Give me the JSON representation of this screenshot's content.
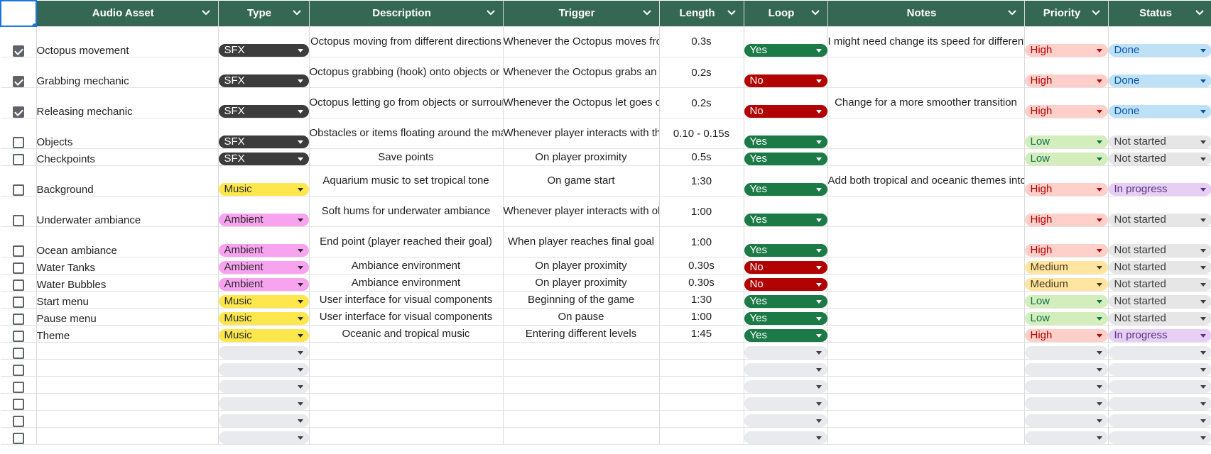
{
  "headers": [
    "Audio Asset",
    "Type",
    "Description",
    "Trigger",
    "Length",
    "Loop",
    "Notes",
    "Priority",
    "Status"
  ],
  "styles": {
    "type": {
      "SFX": {
        "bg": "#3c3c3c",
        "fg": "#ffffff"
      },
      "Music": {
        "bg": "#fde74c",
        "fg": "#2b2b2b"
      },
      "Ambient": {
        "bg": "#f7a3ef",
        "fg": "#2b2b2b"
      },
      "": {
        "bg": "#e8eaed",
        "fg": "#3c4043"
      }
    },
    "loop": {
      "Yes": {
        "bg": "#1b7a46",
        "fg": "#ffffff"
      },
      "No": {
        "bg": "#b10202",
        "fg": "#ffffff"
      },
      "": {
        "bg": "#e8eaed",
        "fg": "#3c4043"
      }
    },
    "priority": {
      "High": {
        "bg": "#ffcfc9",
        "fg": "#b10202"
      },
      "Low": {
        "bg": "#d4edbc",
        "fg": "#11734b"
      },
      "Medium": {
        "bg": "#ffe5a0",
        "fg": "#473821"
      },
      "": {
        "bg": "#e8eaed",
        "fg": "#3c4043"
      }
    },
    "status": {
      "Done": {
        "bg": "#bfe1f6",
        "fg": "#0a53a8"
      },
      "Not started": {
        "bg": "#e6e6e6",
        "fg": "#3d3d3d"
      },
      "In progress": {
        "bg": "#e6cff2",
        "fg": "#5a3286"
      },
      "": {
        "bg": "#e8eaed",
        "fg": "#3c4043"
      }
    }
  },
  "rows": [
    {
      "checked": true,
      "asset": "Octopus movement",
      "type": "SFX",
      "description": "Octopus moving from different directions",
      "trigger": "Whenever the Octopus moves from one point to another",
      "length": "0.3s",
      "loop": "Yes",
      "notes": "I might need change its speed for different velocity variations",
      "priority": "High",
      "status": "Done",
      "tall": true
    },
    {
      "checked": true,
      "asset": "Grabbing mechanic",
      "type": "SFX",
      "description": "Octopus grabbing (hook) onto objects or surroundings",
      "trigger": "Whenever the Octopus grabs an object or wall",
      "length": "0.2s",
      "loop": "No",
      "notes": "",
      "priority": "High",
      "status": "Done",
      "tall": true
    },
    {
      "checked": true,
      "asset": "Releasing mechanic",
      "type": "SFX",
      "description": "Octopus letting go from objects or surroundings",
      "trigger": "Whenever the Octopus let goes of the object or wall",
      "length": "0.2s",
      "loop": "No",
      "notes": "Change for a more smoother transition",
      "priority": "High",
      "status": "Done",
      "tall": true
    },
    {
      "checked": false,
      "asset": "Objects",
      "type": "SFX",
      "description": "Obstacles or items floating around the map",
      "trigger": "Whenever player interacts with them",
      "length": "0.10 - 0.15s",
      "loop": "Yes",
      "notes": "",
      "priority": "Low",
      "status": "Not started",
      "tall": true
    },
    {
      "checked": false,
      "asset": "Checkpoints",
      "type": "SFX",
      "description": "Save points",
      "trigger": "On player proximity",
      "length": "0.5s",
      "loop": "Yes",
      "notes": "",
      "priority": "Low",
      "status": "Not started",
      "tall": false
    },
    {
      "checked": false,
      "asset": "Background",
      "type": "Music",
      "description": "Aquarium music to set tropical tone",
      "trigger": "On game start",
      "length": "1:30",
      "loop": "Yes",
      "notes": "Add both tropical and oceanic themes into one",
      "priority": "High",
      "status": "In progress",
      "tall": true
    },
    {
      "checked": false,
      "asset": "Underwater ambiance",
      "type": "Ambient",
      "description": "Soft hums for underwater ambiance",
      "trigger": "Whenever player interacts with objects below water",
      "length": "1:00",
      "loop": "Yes",
      "notes": "",
      "priority": "High",
      "status": "Not started",
      "tall": true
    },
    {
      "checked": false,
      "asset": "Ocean ambiance",
      "type": "Ambient",
      "description": "End point (player reached their goal)",
      "trigger": "When player reaches final goal",
      "length": "1:00",
      "loop": "Yes",
      "notes": "",
      "priority": "High",
      "status": "Not started",
      "tall": true
    },
    {
      "checked": false,
      "asset": "Water Tanks",
      "type": "Ambient",
      "description": "Ambiance environment",
      "trigger": "On player proximity",
      "length": "0.30s",
      "loop": "No",
      "notes": "",
      "priority": "Medium",
      "status": "Not started",
      "tall": false
    },
    {
      "checked": false,
      "asset": "Water Bubbles",
      "type": "Ambient",
      "description": "Ambiance environment",
      "trigger": "On player proximity",
      "length": "0.30s",
      "loop": "No",
      "notes": "",
      "priority": "Medium",
      "status": "Not started",
      "tall": false
    },
    {
      "checked": false,
      "asset": "Start menu",
      "type": "Music",
      "description": "User interface for visual components",
      "trigger": "Beginning of the game",
      "length": "1:30",
      "loop": "Yes",
      "notes": "",
      "priority": "Low",
      "status": "Not started",
      "tall": false
    },
    {
      "checked": false,
      "asset": "Pause menu",
      "type": "Music",
      "description": "User interface for visual components",
      "trigger": "On pause",
      "length": "1:00",
      "loop": "Yes",
      "notes": "",
      "priority": "Low",
      "status": "Not started",
      "tall": false
    },
    {
      "checked": false,
      "asset": "Theme",
      "type": "Music",
      "description": "Oceanic and tropical music",
      "trigger": "Entering different levels",
      "length": "1:45",
      "loop": "Yes",
      "notes": "",
      "priority": "High",
      "status": "In progress",
      "tall": false
    },
    {
      "checked": false,
      "asset": "",
      "type": "",
      "description": "",
      "trigger": "",
      "length": "",
      "loop": "",
      "notes": "",
      "priority": "",
      "status": "",
      "tall": false
    },
    {
      "checked": false,
      "asset": "",
      "type": "",
      "description": "",
      "trigger": "",
      "length": "",
      "loop": "",
      "notes": "",
      "priority": "",
      "status": "",
      "tall": false
    },
    {
      "checked": false,
      "asset": "",
      "type": "",
      "description": "",
      "trigger": "",
      "length": "",
      "loop": "",
      "notes": "",
      "priority": "",
      "status": "",
      "tall": false
    },
    {
      "checked": false,
      "asset": "",
      "type": "",
      "description": "",
      "trigger": "",
      "length": "",
      "loop": "",
      "notes": "",
      "priority": "",
      "status": "",
      "tall": false
    },
    {
      "checked": false,
      "asset": "",
      "type": "",
      "description": "",
      "trigger": "",
      "length": "",
      "loop": "",
      "notes": "",
      "priority": "",
      "status": "",
      "tall": false
    },
    {
      "checked": false,
      "asset": "",
      "type": "",
      "description": "",
      "trigger": "",
      "length": "",
      "loop": "",
      "notes": "",
      "priority": "",
      "status": "",
      "tall": false
    }
  ]
}
